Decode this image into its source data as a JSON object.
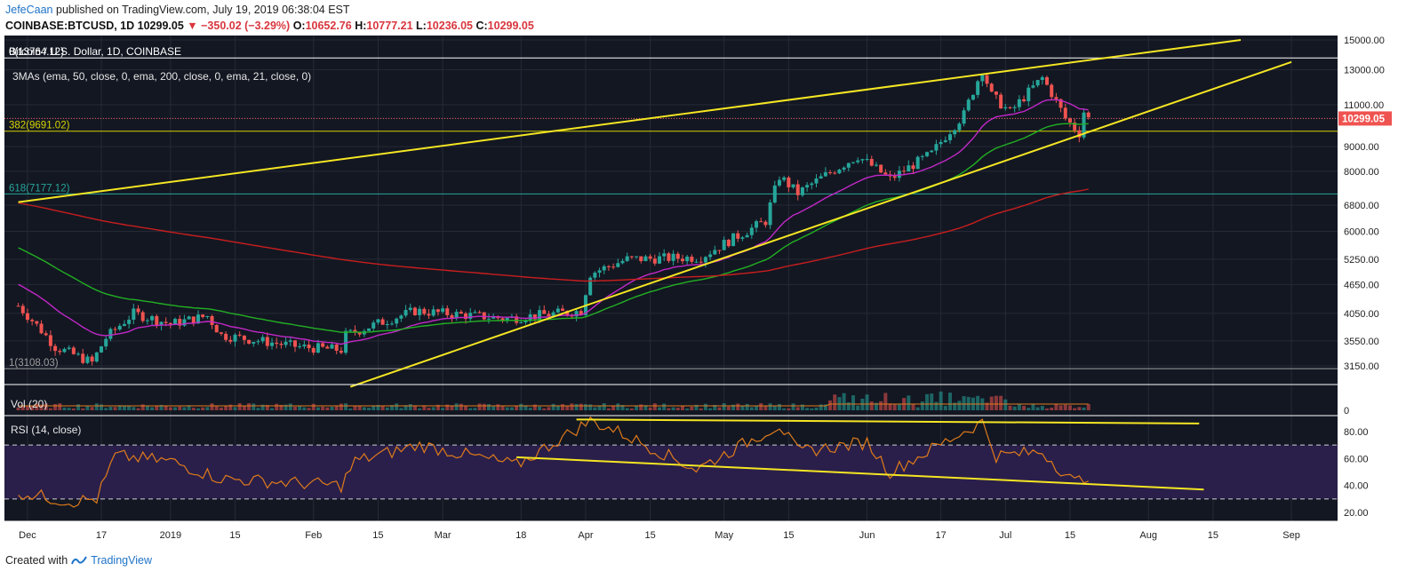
{
  "publish_info": {
    "author": "JefeCaan",
    "text": " published on TradingView.com, July 19, 2019 06:38:04 EST"
  },
  "ticker": {
    "symbol": "COINBASE:BTCUSD, 1D",
    "last": "10299.05",
    "arrow": "▼",
    "change": "−350.02 (−3.29%)",
    "open_label": "O:",
    "open": "10652.76",
    "high_label": "H:",
    "high": "10777.21",
    "low_label": "L:",
    "low": "10236.05",
    "close_label": "C:",
    "close": "10299.05"
  },
  "footer": {
    "created_with": "Created with",
    "brand": "TradingView"
  },
  "colors": {
    "background": "#131722",
    "up": "#26a69a",
    "down": "#ef5350",
    "ema21": "#c228c8",
    "ema50": "#22b022",
    "ema200": "#c81e1e",
    "trendline": "#f5e623",
    "rsi": "#e07b1a",
    "rsi_band": "#2a1f4a"
  },
  "chart_data": [
    {
      "type": "line",
      "title": "Bitcoin / U.S. Dollar, 1D, COINBASE",
      "indicator_label": "3MAs (ema, 50, close, 0, ema, 200, close, 0, ema, 21, close, 0)",
      "y_scale": "log",
      "y_ticks": [
        "15000.00",
        "13000.00",
        "11000.00",
        "10299.05",
        "9000.00",
        "8000.00",
        "6800.00",
        "6000.00",
        "5250.00",
        "4650.00",
        "4050.00",
        "3550.00",
        "3150.00"
      ],
      "x_ticks": [
        "Dec",
        "17",
        "2019",
        "15",
        "Feb",
        "15",
        "Mar",
        "18",
        "Apr",
        "15",
        "May",
        "15",
        "Jun",
        "17",
        "Jul",
        "15",
        "Aug",
        "15",
        "Sep"
      ],
      "last_price_label": "10299.05",
      "fib_levels": [
        {
          "label": "0(13764.12)",
          "value": 13764.12
        },
        {
          "label": "382(9691.02)",
          "value": 9691.02
        },
        {
          "label": "618(7177.12)",
          "value": 7177.12
        },
        {
          "label": "1(3108.03)",
          "value": 3108.03
        }
      ],
      "series": [
        {
          "name": "ema 21"
        },
        {
          "name": "ema 50"
        },
        {
          "name": "ema 200"
        }
      ],
      "price_path": [
        {
          "x": "2018-11-29",
          "y": 4200
        },
        {
          "x": "2018-12-07",
          "y": 3450
        },
        {
          "x": "2018-12-15",
          "y": 3200
        },
        {
          "x": "2018-12-18",
          "y": 3600
        },
        {
          "x": "2018-12-24",
          "y": 4050
        },
        {
          "x": "2019-01-01",
          "y": 3850
        },
        {
          "x": "2019-01-09",
          "y": 4000
        },
        {
          "x": "2019-01-12",
          "y": 3650
        },
        {
          "x": "2019-01-29",
          "y": 3450
        },
        {
          "x": "2019-02-07",
          "y": 3400
        },
        {
          "x": "2019-02-08",
          "y": 3650
        },
        {
          "x": "2019-02-23",
          "y": 4100
        },
        {
          "x": "2019-03-15",
          "y": 3950
        },
        {
          "x": "2019-03-31",
          "y": 4100
        },
        {
          "x": "2019-04-02",
          "y": 4900
        },
        {
          "x": "2019-04-10",
          "y": 5250
        },
        {
          "x": "2019-04-26",
          "y": 5300
        },
        {
          "x": "2019-05-10",
          "y": 6300
        },
        {
          "x": "2019-05-13",
          "y": 7800
        },
        {
          "x": "2019-05-17",
          "y": 7200
        },
        {
          "x": "2019-05-30",
          "y": 8600
        },
        {
          "x": "2019-06-06",
          "y": 7700
        },
        {
          "x": "2019-06-15",
          "y": 8700
        },
        {
          "x": "2019-06-22",
          "y": 10500
        },
        {
          "x": "2019-06-26",
          "y": 13000
        },
        {
          "x": "2019-06-28",
          "y": 11500
        },
        {
          "x": "2019-07-02",
          "y": 10600
        },
        {
          "x": "2019-07-09",
          "y": 12500
        },
        {
          "x": "2019-07-14",
          "y": 10300
        },
        {
          "x": "2019-07-17",
          "y": 9600
        },
        {
          "x": "2019-07-18",
          "y": 10650
        },
        {
          "x": "2019-07-19",
          "y": 10299
        }
      ],
      "trendlines_price": [
        {
          "from": {
            "x": "2018-11-29",
            "y": 6900
          },
          "to": {
            "x": "2019-08-21",
            "y": 15000
          }
        },
        {
          "from": {
            "x": "2019-02-09",
            "y": 2850
          },
          "to": {
            "x": "2019-09-01",
            "y": 13500
          }
        }
      ]
    },
    {
      "type": "bar",
      "title": "Vol (20)",
      "y_ticks": [
        "0"
      ]
    },
    {
      "type": "line",
      "title": "RSI (14, close)",
      "y_ticks": [
        "80.00",
        "60.00",
        "40.00",
        "20.00"
      ],
      "band": [
        30,
        70
      ],
      "rsi_path": [
        {
          "x": "2018-11-29",
          "y": 35
        },
        {
          "x": "2018-12-10",
          "y": 28
        },
        {
          "x": "2018-12-16",
          "y": 30
        },
        {
          "x": "2018-12-20",
          "y": 62
        },
        {
          "x": "2019-01-01",
          "y": 58
        },
        {
          "x": "2019-01-12",
          "y": 45
        },
        {
          "x": "2019-02-07",
          "y": 40
        },
        {
          "x": "2019-02-10",
          "y": 58
        },
        {
          "x": "2019-02-24",
          "y": 70
        },
        {
          "x": "2019-03-17",
          "y": 55
        },
        {
          "x": "2019-04-02",
          "y": 88
        },
        {
          "x": "2019-04-08",
          "y": 80
        },
        {
          "x": "2019-04-25",
          "y": 52
        },
        {
          "x": "2019-05-13",
          "y": 85
        },
        {
          "x": "2019-05-17",
          "y": 65
        },
        {
          "x": "2019-06-01",
          "y": 72
        },
        {
          "x": "2019-06-06",
          "y": 50
        },
        {
          "x": "2019-06-22",
          "y": 80
        },
        {
          "x": "2019-06-26",
          "y": 87
        },
        {
          "x": "2019-06-29",
          "y": 62
        },
        {
          "x": "2019-07-09",
          "y": 65
        },
        {
          "x": "2019-07-16",
          "y": 42
        },
        {
          "x": "2019-07-19",
          "y": 48
        }
      ],
      "trendlines_rsi": [
        {
          "from": {
            "x": "2019-03-30",
            "y": 89
          },
          "to": {
            "x": "2019-08-12",
            "y": 86
          }
        },
        {
          "from": {
            "x": "2019-03-17",
            "y": 61
          },
          "to": {
            "x": "2019-08-13",
            "y": 37
          }
        }
      ]
    }
  ]
}
